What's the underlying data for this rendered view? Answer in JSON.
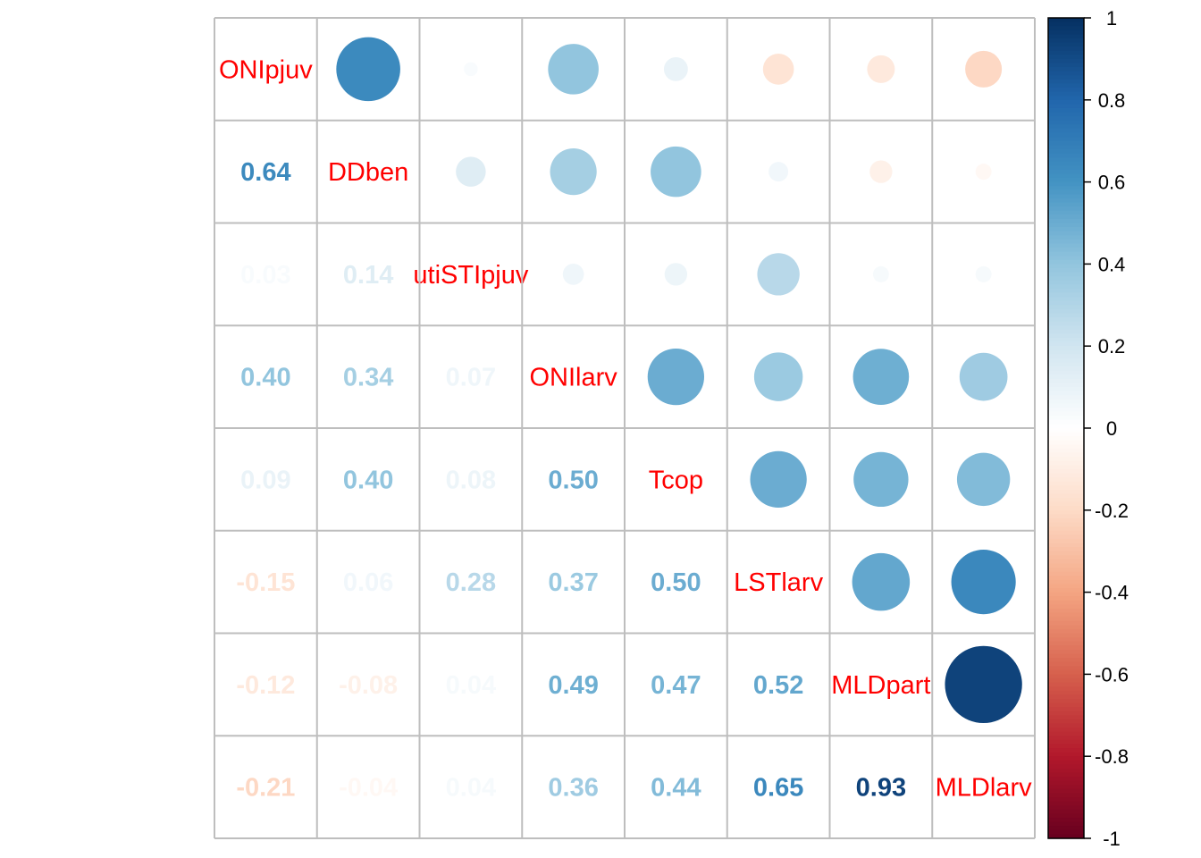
{
  "chart_data": {
    "type": "heatmap",
    "style": "corrplot mixed: circles in upper triangle, numbers in lower triangle, variable names on diagonal",
    "variables": [
      "ONIpjuv",
      "DDben",
      "utiSTIpjuv",
      "ONIlarv",
      "Tcop",
      "LSTlarv",
      "MLDpart",
      "MLDlarv"
    ],
    "matrix": [
      [
        1.0,
        0.64,
        0.03,
        0.4,
        0.09,
        -0.15,
        -0.12,
        -0.21
      ],
      [
        0.64,
        1.0,
        0.14,
        0.34,
        0.4,
        0.06,
        -0.08,
        -0.04
      ],
      [
        0.03,
        0.14,
        1.0,
        0.07,
        0.08,
        0.28,
        0.04,
        0.04
      ],
      [
        0.4,
        0.34,
        0.07,
        1.0,
        0.5,
        0.37,
        0.49,
        0.36
      ],
      [
        0.09,
        0.4,
        0.08,
        0.5,
        1.0,
        0.5,
        0.47,
        0.44
      ],
      [
        -0.15,
        0.06,
        0.28,
        0.37,
        0.5,
        1.0,
        0.52,
        0.65
      ],
      [
        -0.12,
        -0.08,
        0.04,
        0.49,
        0.47,
        0.52,
        1.0,
        0.93
      ],
      [
        -0.21,
        -0.04,
        0.04,
        0.36,
        0.44,
        0.65,
        0.93,
        1.0
      ]
    ],
    "number_labels": [
      [
        "",
        "",
        "",
        "",
        "",
        "",
        "",
        ""
      ],
      [
        "0.64",
        "",
        "",
        "",
        "",
        "",
        "",
        ""
      ],
      [
        "0.03",
        "0.14",
        "",
        "",
        "",
        "",
        "",
        ""
      ],
      [
        "0.40",
        "0.34",
        "0.07",
        "",
        "",
        "",
        "",
        ""
      ],
      [
        "0.09",
        "0.40",
        "0.08",
        "0.50",
        "",
        "",
        "",
        ""
      ],
      [
        "-0.15",
        "0.06",
        "0.28",
        "0.37",
        "0.50",
        "",
        "",
        ""
      ],
      [
        "-0.12",
        "-0.08",
        "0.04",
        "0.49",
        "0.47",
        "0.52",
        "",
        ""
      ],
      [
        "-0.21",
        "-0.04",
        "0.04",
        "0.36",
        "0.44",
        "0.65",
        "0.93",
        ""
      ]
    ],
    "colorbar": {
      "range": [
        -1,
        1
      ],
      "tick_values": [
        1,
        0.8,
        0.6,
        0.4,
        0.2,
        0,
        -0.2,
        -0.4,
        -0.6,
        -0.8,
        -1
      ],
      "tick_labels": [
        "1",
        "0.8",
        "0.6",
        "0.4",
        "0.2",
        "0",
        "-0.2",
        "-0.4",
        "-0.6",
        "-0.8",
        "-1"
      ],
      "palette": [
        "#67001F",
        "#B2182B",
        "#D6604D",
        "#F4A582",
        "#FDDBC7",
        "#FFFFFF",
        "#D1E5F0",
        "#92C5DE",
        "#4393C3",
        "#2166AC",
        "#053061"
      ]
    },
    "colors": {
      "diagonal_label": "#FF0000",
      "grid": "#BEBEBE"
    }
  }
}
